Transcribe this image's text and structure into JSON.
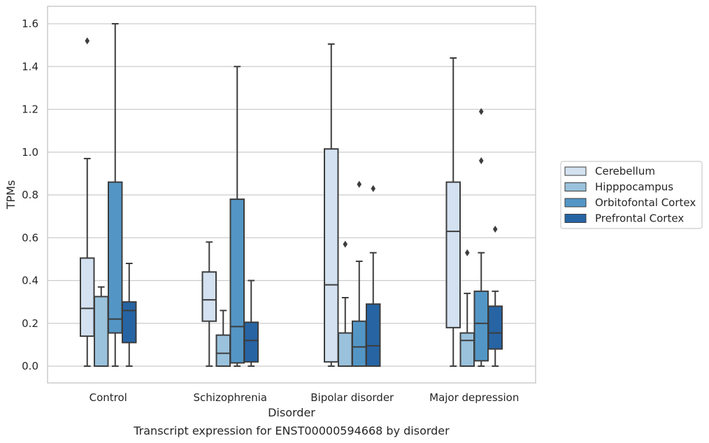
{
  "chart_data": {
    "type": "box",
    "xlabel": "Disorder",
    "ylabel": "TPMs",
    "caption": "Transcript expression for ENST00000594668 by disorder",
    "ylim": [
      -0.08,
      1.68
    ],
    "yticks": [
      "0.0",
      "0.2",
      "0.4",
      "0.6",
      "0.8",
      "1.0",
      "1.2",
      "1.4",
      "1.6"
    ],
    "grid": true,
    "legend_position": "right",
    "categories": [
      "Control",
      "Schizophrenia",
      "Bipolar disorder",
      "Major depression"
    ],
    "series": [
      {
        "name": "Cerebellum",
        "color": "#d3e1f0",
        "boxes": [
          {
            "min": 0.0,
            "q1": 0.14,
            "median": 0.27,
            "q3": 0.505,
            "max": 0.97,
            "outliers": [
              1.52
            ]
          },
          {
            "min": 0.0,
            "q1": 0.21,
            "median": 0.31,
            "q3": 0.44,
            "max": 0.58,
            "outliers": []
          },
          {
            "min": 0.0,
            "q1": 0.02,
            "median": 0.38,
            "q3": 1.015,
            "max": 1.505,
            "outliers": []
          },
          {
            "min": 0.0,
            "q1": 0.18,
            "median": 0.63,
            "q3": 0.86,
            "max": 1.44,
            "outliers": []
          }
        ]
      },
      {
        "name": "Hipppocampus",
        "color": "#9ac2dc",
        "boxes": [
          {
            "min": 0.0,
            "q1": 0.0,
            "median": 0.0,
            "q3": 0.325,
            "max": 0.37,
            "outliers": []
          },
          {
            "min": 0.0,
            "q1": 0.0,
            "median": 0.06,
            "q3": 0.145,
            "max": 0.26,
            "outliers": []
          },
          {
            "min": 0.0,
            "q1": 0.0,
            "median": 0.0,
            "q3": 0.155,
            "max": 0.32,
            "outliers": [
              0.57
            ]
          },
          {
            "min": 0.0,
            "q1": 0.0,
            "median": 0.12,
            "q3": 0.155,
            "max": 0.34,
            "outliers": [
              0.53
            ]
          }
        ]
      },
      {
        "name": "Orbitofontal Cortex",
        "color": "#5396c6",
        "boxes": [
          {
            "min": 0.0,
            "q1": 0.155,
            "median": 0.22,
            "q3": 0.86,
            "max": 1.6,
            "outliers": []
          },
          {
            "min": 0.0,
            "q1": 0.015,
            "median": 0.185,
            "q3": 0.78,
            "max": 1.4,
            "outliers": []
          },
          {
            "min": 0.0,
            "q1": 0.0,
            "median": 0.09,
            "q3": 0.21,
            "max": 0.49,
            "outliers": [
              0.85
            ]
          },
          {
            "min": 0.0,
            "q1": 0.025,
            "median": 0.2,
            "q3": 0.35,
            "max": 0.53,
            "outliers": [
              0.96,
              1.19
            ]
          }
        ]
      },
      {
        "name": "Prefrontal Cortex",
        "color": "#2664a4",
        "boxes": [
          {
            "min": 0.0,
            "q1": 0.11,
            "median": 0.26,
            "q3": 0.3,
            "max": 0.48,
            "outliers": []
          },
          {
            "min": 0.0,
            "q1": 0.02,
            "median": 0.12,
            "q3": 0.205,
            "max": 0.4,
            "outliers": []
          },
          {
            "min": 0.0,
            "q1": 0.0,
            "median": 0.095,
            "q3": 0.29,
            "max": 0.53,
            "outliers": [
              0.83
            ]
          },
          {
            "min": 0.0,
            "q1": 0.08,
            "median": 0.155,
            "q3": 0.28,
            "max": 0.35,
            "outliers": [
              0.64
            ]
          }
        ]
      }
    ]
  }
}
